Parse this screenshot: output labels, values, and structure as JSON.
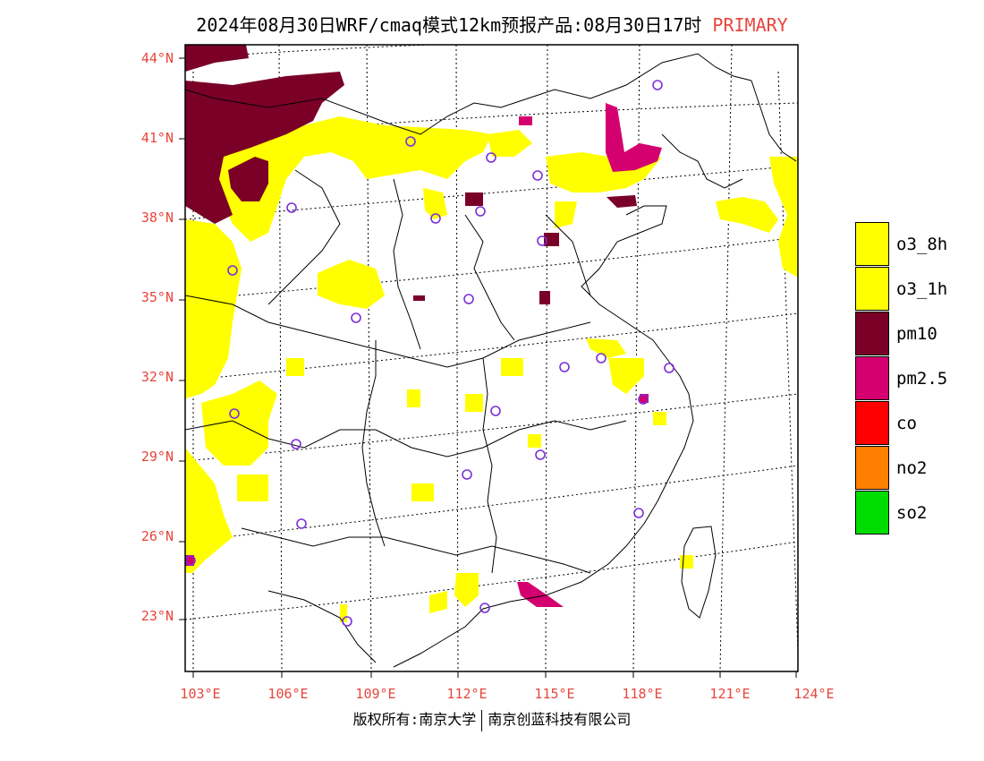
{
  "title": {
    "main": "2024年08月30日WRF/cmaq模式12km预报产品:08月30日17时",
    "tag": "PRIMARY"
  },
  "lat_labels": [
    "44°N",
    "41°N",
    "38°N",
    "35°N",
    "32°N",
    "29°N",
    "26°N",
    "23°N"
  ],
  "lon_labels": [
    "103°E",
    "106°E",
    "109°E",
    "112°E",
    "115°E",
    "118°E",
    "121°E",
    "124°E"
  ],
  "legend": [
    {
      "label": "o3_8h",
      "color": "#ffff00"
    },
    {
      "label": "o3_1h",
      "color": "#ffff00"
    },
    {
      "label": "pm10",
      "color": "#7a0028"
    },
    {
      "label": "pm2.5",
      "color": "#d4006f"
    },
    {
      "label": "co",
      "color": "#ff0000"
    },
    {
      "label": "no2",
      "color": "#ff8000"
    },
    {
      "label": "so2",
      "color": "#00dc00"
    }
  ],
  "footer": {
    "left": "版权所有:南京大学",
    "right": "南京创蓝科技有限公司"
  }
}
